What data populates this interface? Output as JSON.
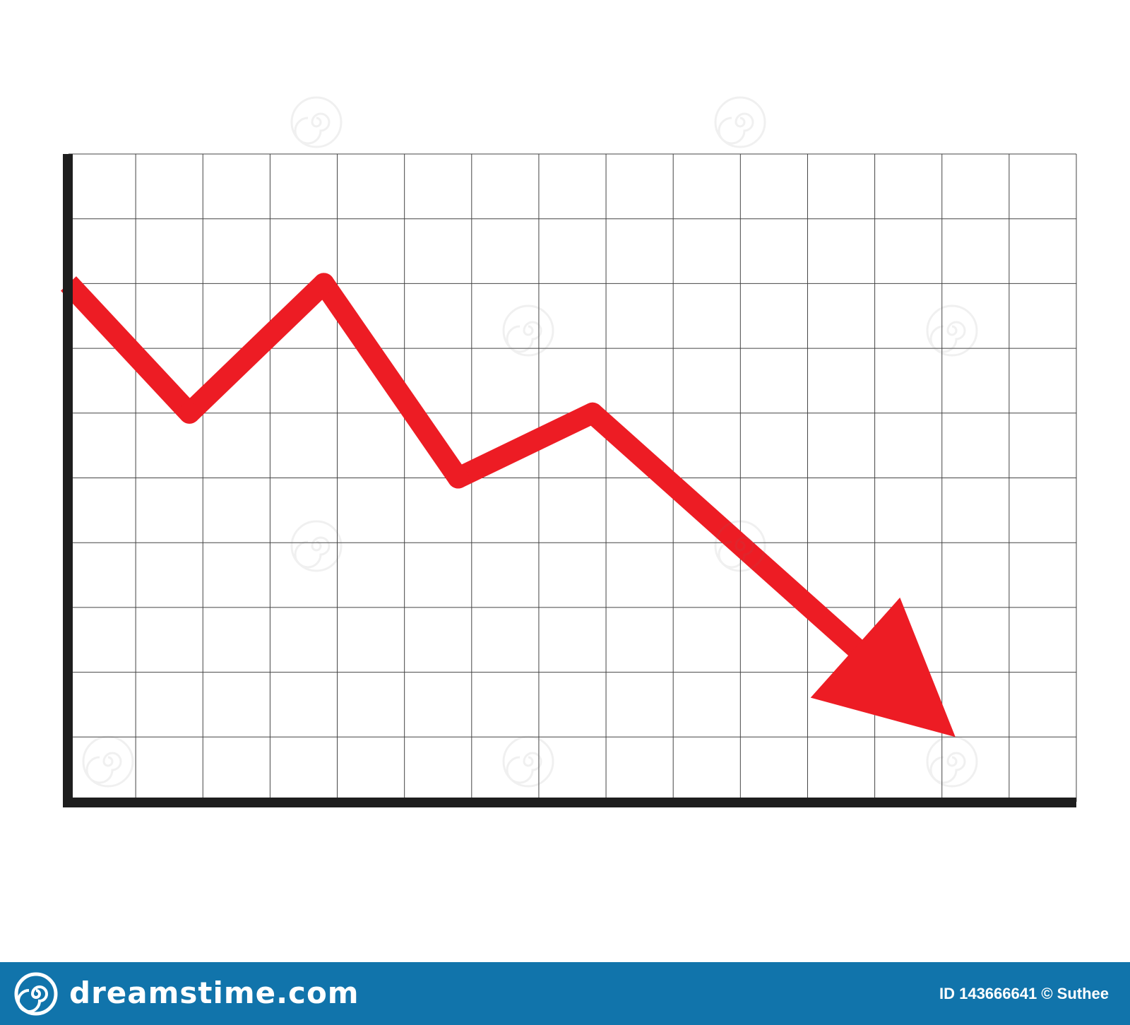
{
  "chart_data": {
    "type": "line",
    "x": [
      0,
      1.8,
      3.8,
      5.8,
      7.8,
      13.2
    ],
    "y": [
      8,
      6,
      8,
      5,
      6,
      1
    ],
    "xlim": [
      0,
      15
    ],
    "ylim": [
      0,
      10
    ],
    "grid": true,
    "title": "",
    "xlabel": "",
    "ylabel": "",
    "series": [
      {
        "values": [
          8,
          6,
          8,
          5,
          6,
          1
        ],
        "color": "#ed1c24"
      }
    ],
    "arrowhead": true
  },
  "colors": {
    "trend": "#ed1c24",
    "axis": "#1e1e1e",
    "grid": "#444444",
    "footer": "#1174ab"
  },
  "footer": {
    "brand": "dreamstime.com",
    "image_id": "ID 143666641 © Suthee",
    "logo_icon": "spiral-icon"
  }
}
